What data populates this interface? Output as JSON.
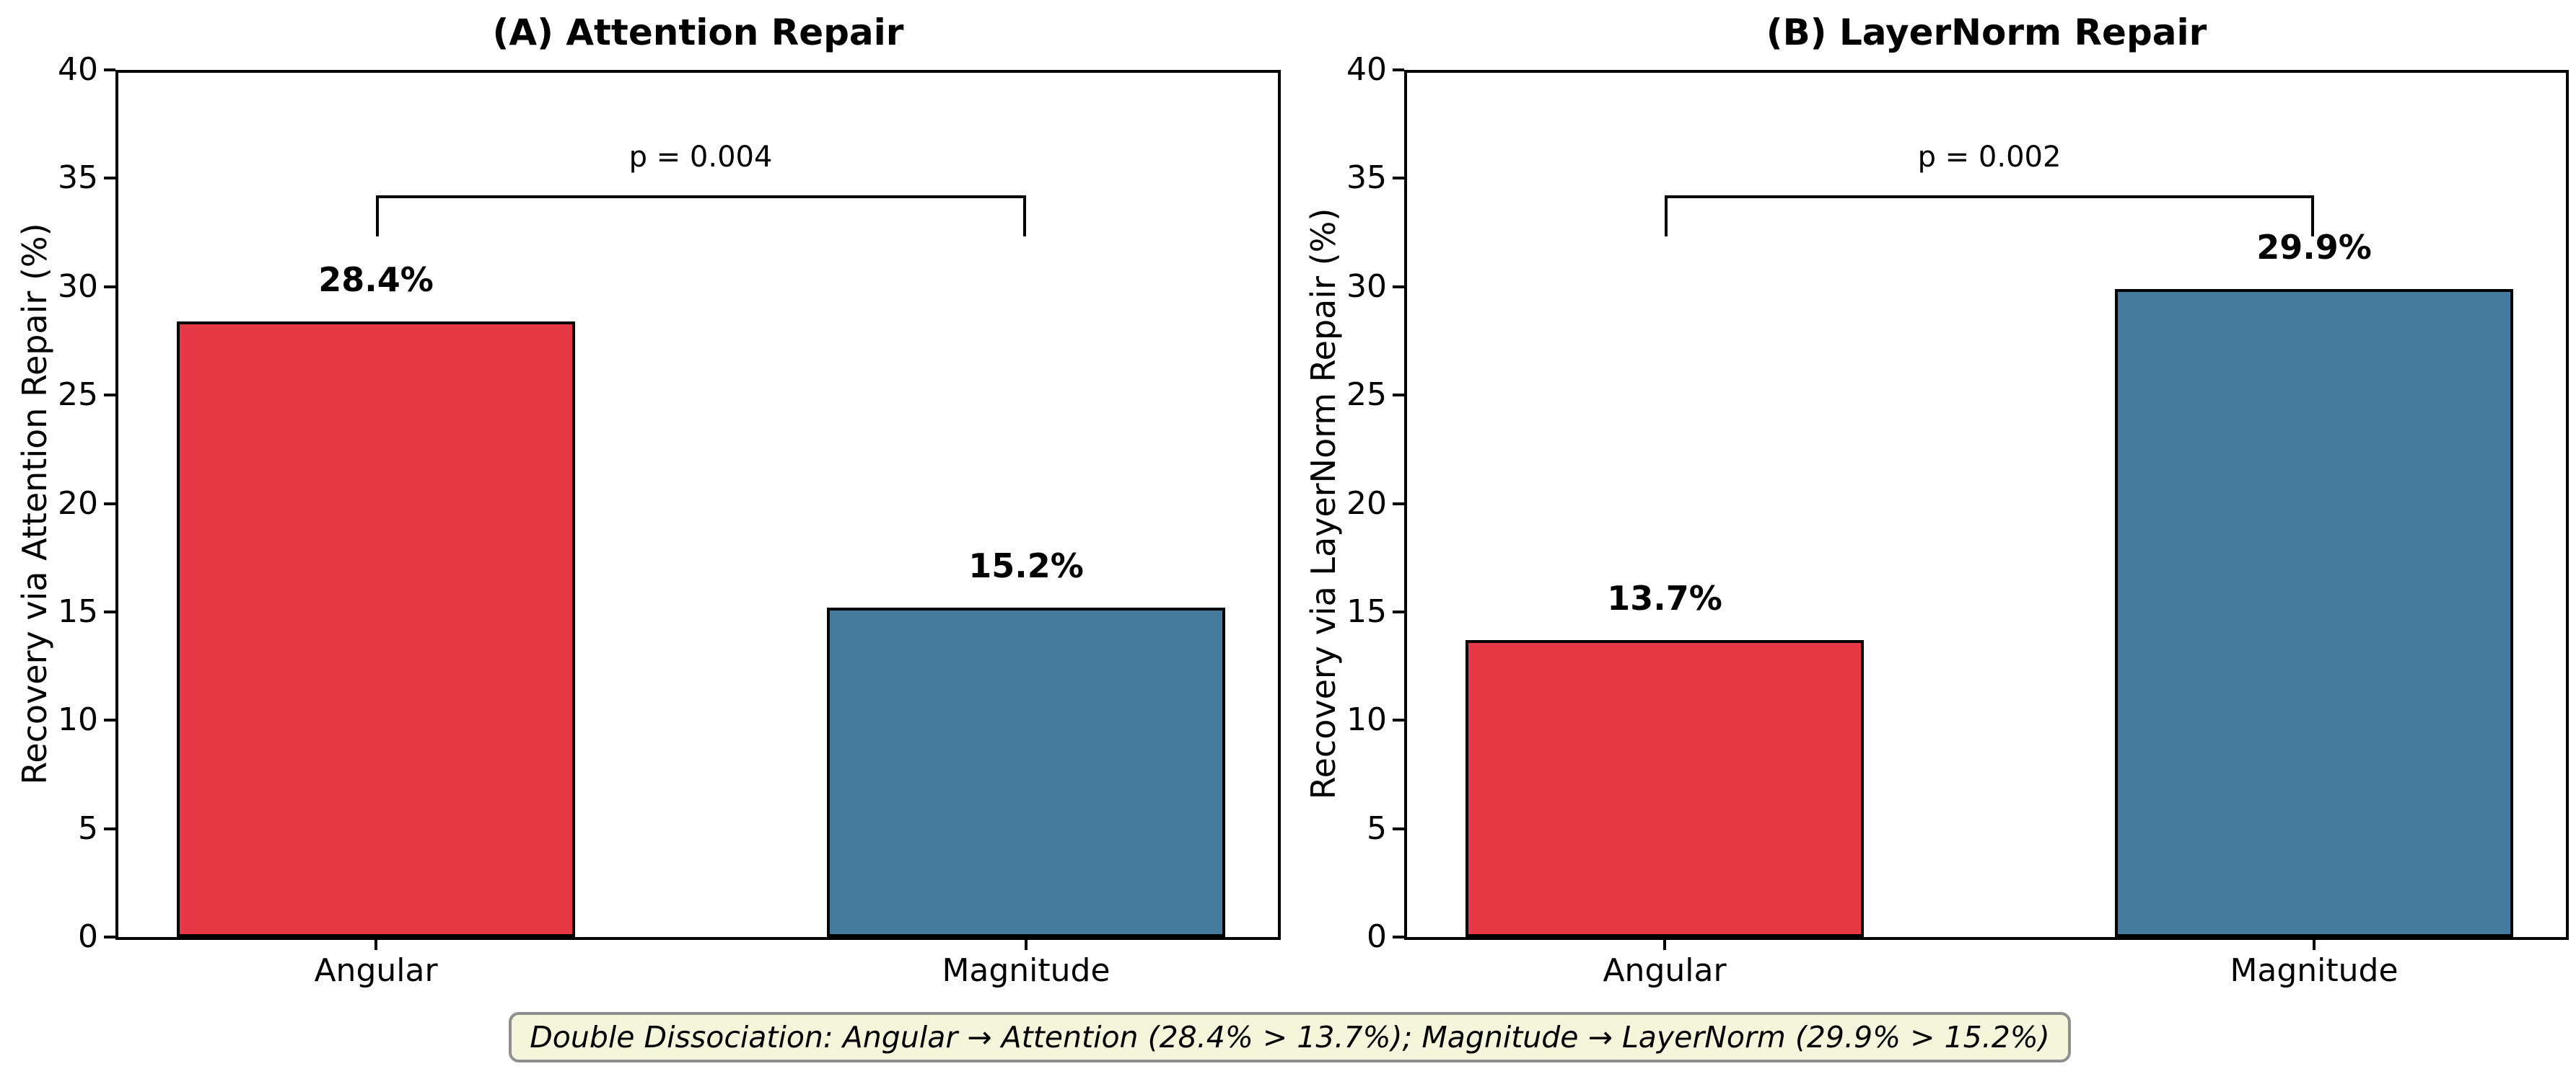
{
  "figure": {
    "background": "#ffffff"
  },
  "chart_data": [
    {
      "type": "bar",
      "panel": "A",
      "title": "(A) Attention Repair",
      "ylabel": "Recovery via Attention Repair (%)",
      "xlabel": "",
      "categories": [
        "Angular",
        "Magnitude"
      ],
      "values": [
        28.4,
        15.2
      ],
      "value_labels": [
        "28.4%",
        "15.2%"
      ],
      "bar_colors": [
        "#E63946",
        "#457B9D"
      ],
      "bar_edge_color": "#000000",
      "ylim": [
        0,
        40
      ],
      "yticks": [
        0,
        5,
        10,
        15,
        20,
        25,
        30,
        35,
        40
      ],
      "grid": false,
      "legend": "none",
      "significance": {
        "label": "p = 0.004",
        "bracket_y": 34.2,
        "bracket_drop": 1.9
      }
    },
    {
      "type": "bar",
      "panel": "B",
      "title": "(B) LayerNorm Repair",
      "ylabel": "Recovery via LayerNorm Repair (%)",
      "xlabel": "",
      "categories": [
        "Angular",
        "Magnitude"
      ],
      "values": [
        13.7,
        29.9
      ],
      "value_labels": [
        "13.7%",
        "29.9%"
      ],
      "bar_colors": [
        "#E63946",
        "#457B9D"
      ],
      "bar_edge_color": "#000000",
      "ylim": [
        0,
        40
      ],
      "yticks": [
        0,
        5,
        10,
        15,
        20,
        25,
        30,
        35,
        40
      ],
      "grid": false,
      "legend": "none",
      "significance": {
        "label": "p = 0.002",
        "bracket_y": 34.2,
        "bracket_drop": 1.9
      }
    }
  ],
  "annotation": {
    "text": "Double Dissociation: Angular → Attention (28.4% > 13.7%); Magnitude → LayerNorm (29.9% > 15.2%)",
    "background": "#F5F5DC",
    "border_color": "#8f8f8f",
    "text_color": "#000000"
  },
  "colors": {
    "angular_bar": "#E63946",
    "magnitude_bar": "#457B9D",
    "bar_edge": "#000000",
    "axis": "#000000"
  }
}
